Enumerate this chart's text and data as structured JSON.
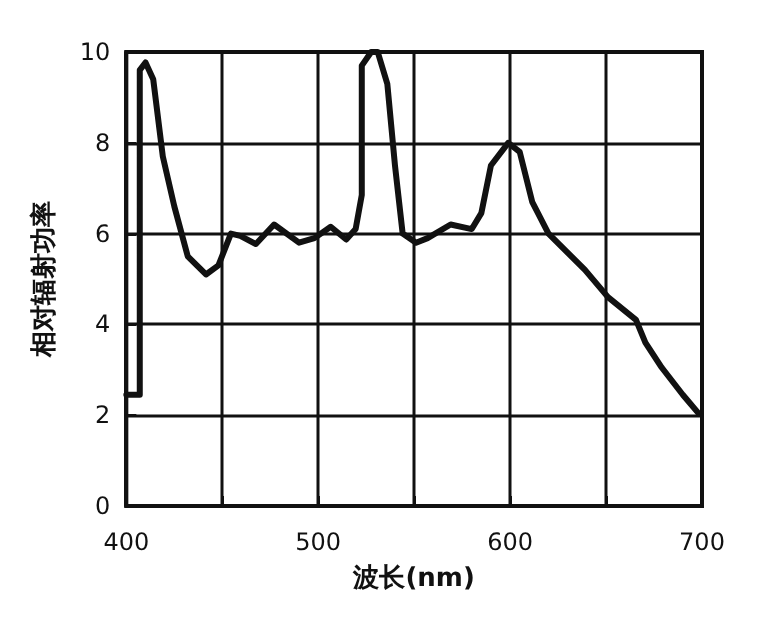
{
  "chart_data": {
    "type": "line",
    "xlabel": "波长(nm)",
    "ylabel": "相对辐射功率",
    "x": [
      400,
      407,
      407,
      410,
      414,
      419,
      425,
      432,
      441.5,
      448,
      454.5,
      459.4,
      467.5,
      477,
      490,
      498,
      506.5,
      514.6,
      519.5,
      522.7,
      522.7,
      527.6,
      531,
      536,
      540,
      544,
      551,
      557,
      569,
      580,
      585,
      590,
      599,
      605,
      611.5,
      620,
      639,
      651,
      665.6,
      670.5,
      679,
      690,
      698
    ],
    "series": [
      {
        "color": "#111111",
        "values": [
          2.45,
          2.45,
          9.6,
          9.77,
          9.4,
          7.7,
          6.6,
          5.5,
          5.1,
          5.3,
          6.0,
          5.95,
          5.77,
          6.2,
          5.8,
          5.9,
          6.15,
          5.87,
          6.1,
          6.85,
          9.7,
          10,
          10,
          9.3,
          7.5,
          6.0,
          5.8,
          5.9,
          6.2,
          6.1,
          6.45,
          7.5,
          8.0,
          7.8,
          6.7,
          6.0,
          5.2,
          4.6,
          4.1,
          3.6,
          3.05,
          2.45,
          2.05
        ]
      }
    ],
    "xlim": [
      400,
      700
    ],
    "xticks": [
      400,
      {
        "value": 450,
        "label": null
      },
      500,
      {
        "value": 550,
        "label": null
      },
      600,
      {
        "value": 650,
        "label": null
      },
      700
    ],
    "ylim": [
      0,
      10
    ],
    "yticks": [
      0,
      2,
      4,
      6,
      8,
      10
    ],
    "grid": true,
    "marker": "none",
    "line_style": "solid"
  }
}
